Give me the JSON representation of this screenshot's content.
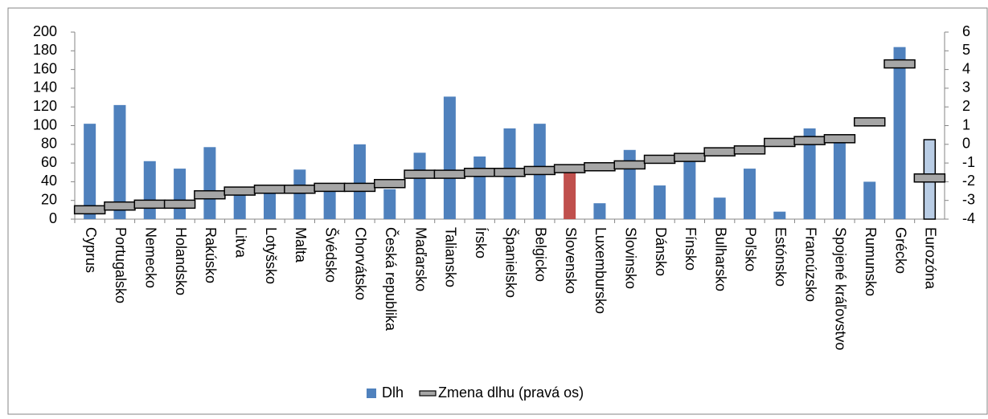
{
  "chart_data": {
    "type": "bar_line",
    "categories": [
      "Cyprus",
      "Portugalsko",
      "Nemecko",
      "Holandsko",
      "Rakúsko",
      "Litva",
      "Lotyšsko",
      "Malta",
      "Švédsko",
      "Chorvátsko",
      "Česká republika",
      "Maďarsko",
      "Taliansko",
      "Írsko",
      "Španielsko",
      "Belgicko",
      "Slovensko",
      "Luxembursko",
      "Slovinsko",
      "Dánsko",
      "Fínsko",
      "Bulharsko",
      "Poľsko",
      "Estónsko",
      "Francúzsko",
      "Spojené kráľovstvo",
      "Rumunsko",
      "Grécko",
      "Eurozóna"
    ],
    "series": [
      {
        "name": "Dlh",
        "color": "#4f81bd",
        "colors": [
          "#4f81bd",
          "#4f81bd",
          "#4f81bd",
          "#4f81bd",
          "#4f81bd",
          "#4f81bd",
          "#4f81bd",
          "#4f81bd",
          "#4f81bd",
          "#4f81bd",
          "#4f81bd",
          "#4f81bd",
          "#4f81bd",
          "#4f81bd",
          "#4f81bd",
          "#4f81bd",
          "#c0504d",
          "#4f81bd",
          "#4f81bd",
          "#4f81bd",
          "#4f81bd",
          "#4f81bd",
          "#4f81bd",
          "#4f81bd",
          "#4f81bd",
          "#4f81bd",
          "#4f81bd",
          "#4f81bd",
          "#b9cde5"
        ],
        "values": [
          102,
          122,
          62,
          54,
          77,
          34,
          33,
          53,
          37,
          80,
          32,
          71,
          131,
          67,
          97,
          102,
          50,
          17,
          74,
          36,
          63,
          23,
          54,
          8,
          97,
          89,
          40,
          184,
          85
        ]
      },
      {
        "name": "Zmena dlhu (pravá os)",
        "color": "#a6a6a6",
        "axis": "y2",
        "values": [
          -3.5,
          -3.3,
          -3.2,
          -3.2,
          -2.7,
          -2.5,
          -2.4,
          -2.4,
          -2.3,
          -2.3,
          -2.1,
          -1.6,
          -1.6,
          -1.5,
          -1.5,
          -1.4,
          -1.3,
          -1.2,
          -1.1,
          -0.8,
          -0.7,
          -0.4,
          -0.3,
          0.1,
          0.2,
          0.3,
          1.2,
          4.3,
          -1.8
        ]
      }
    ],
    "ylim": [
      0,
      200
    ],
    "yticks": [
      0,
      20,
      40,
      60,
      80,
      100,
      120,
      140,
      160,
      180,
      200
    ],
    "y2lim": [
      -4,
      6
    ],
    "y2ticks": [
      -4,
      -3,
      -2,
      -1,
      0,
      1,
      2,
      3,
      4,
      5,
      6
    ],
    "legend": "bottom"
  }
}
